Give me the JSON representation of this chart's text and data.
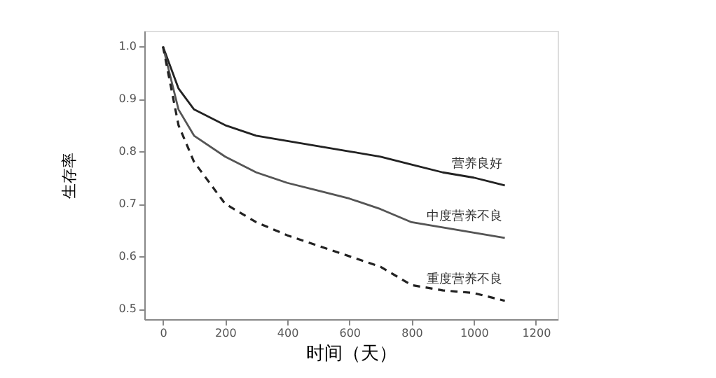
{
  "chart_data": {
    "type": "line",
    "xlabel": "时间（天）",
    "ylabel": "生存率",
    "xlim": [
      -60,
      1270
    ],
    "ylim": [
      0.48,
      1.03
    ],
    "xticks": [
      0,
      200,
      400,
      600,
      800,
      1000,
      1200
    ],
    "yticks": [
      {
        "value": 0.5,
        "label": "0.5"
      },
      {
        "value": 0.6,
        "label": "0.6"
      },
      {
        "value": 0.7,
        "label": "0.7"
      },
      {
        "value": 0.8,
        "label": "0.8"
      },
      {
        "value": 0.9,
        "label": "0.9"
      },
      {
        "value": 1,
        "label": "1.0"
      }
    ],
    "x": [
      0,
      50,
      100,
      200,
      300,
      400,
      500,
      600,
      700,
      800,
      900,
      1000,
      1100
    ],
    "series": [
      {
        "name": "营养良好",
        "color": "#222222",
        "line_style": "solid",
        "values": [
          1.0,
          0.92,
          0.88,
          0.85,
          0.83,
          0.82,
          0.81,
          0.8,
          0.79,
          0.775,
          0.76,
          0.75,
          0.735
        ]
      },
      {
        "name": "中度营养不良",
        "color": "#555555",
        "line_style": "solid",
        "values": [
          1.0,
          0.88,
          0.83,
          0.79,
          0.76,
          0.74,
          0.725,
          0.71,
          0.69,
          0.665,
          0.655,
          0.645,
          0.635
        ]
      },
      {
        "name": "重度营养不良",
        "color": "#222222",
        "line_style": "dashed",
        "values": [
          1.0,
          0.85,
          0.78,
          0.7,
          0.665,
          0.64,
          0.62,
          0.6,
          0.58,
          0.545,
          0.535,
          0.53,
          0.515
        ]
      }
    ],
    "marker": "none",
    "grid": false
  }
}
